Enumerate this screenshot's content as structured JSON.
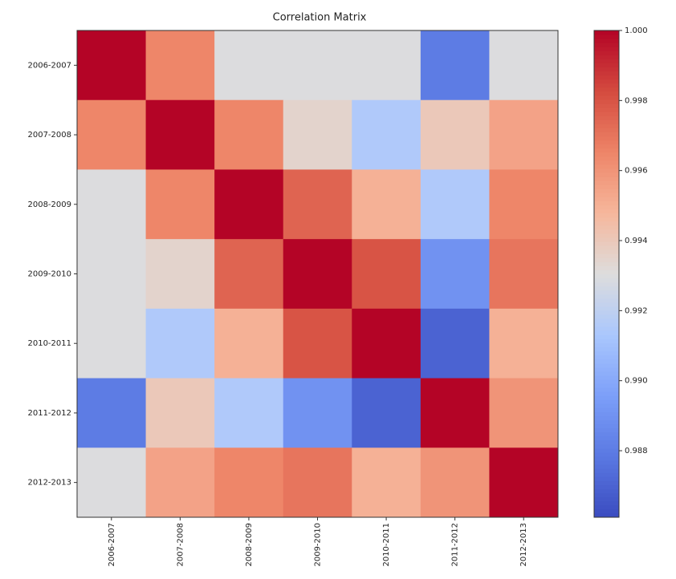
{
  "chart_data": {
    "type": "heatmap",
    "title": "Correlation Matrix",
    "x_categories": [
      "2006-2007",
      "2007-2008",
      "2008-2009",
      "2009-2010",
      "2010-2011",
      "2011-2012",
      "2012-2013"
    ],
    "y_categories": [
      "2006-2007",
      "2007-2008",
      "2008-2009",
      "2009-2010",
      "2010-2011",
      "2011-2012",
      "2012-2013"
    ],
    "values": [
      [
        1,
        0.9965,
        0.993,
        0.993,
        0.993,
        0.988,
        0.993
      ],
      [
        0.9965,
        1,
        0.9965,
        0.9935,
        0.9915,
        0.994,
        0.9955
      ],
      [
        0.993,
        0.9965,
        1,
        0.9975,
        0.995,
        0.9915,
        0.9965
      ],
      [
        0.993,
        0.9935,
        0.9975,
        1,
        0.998,
        0.989,
        0.997
      ],
      [
        0.993,
        0.9915,
        0.995,
        0.998,
        1,
        0.987,
        0.995
      ],
      [
        0.988,
        0.994,
        0.9915,
        0.989,
        0.987,
        1,
        0.996
      ],
      [
        0.993,
        0.9955,
        0.9965,
        0.997,
        0.995,
        0.996,
        1
      ]
    ],
    "colormap": "coolwarm",
    "clim": [
      0.9861,
      1
    ],
    "cticks": [
      0.988,
      {
        "value": 0.99,
        "label": "0.990"
      },
      0.992,
      0.994,
      0.996,
      0.998,
      {
        "value": 1,
        "label": "1.000"
      }
    ]
  }
}
